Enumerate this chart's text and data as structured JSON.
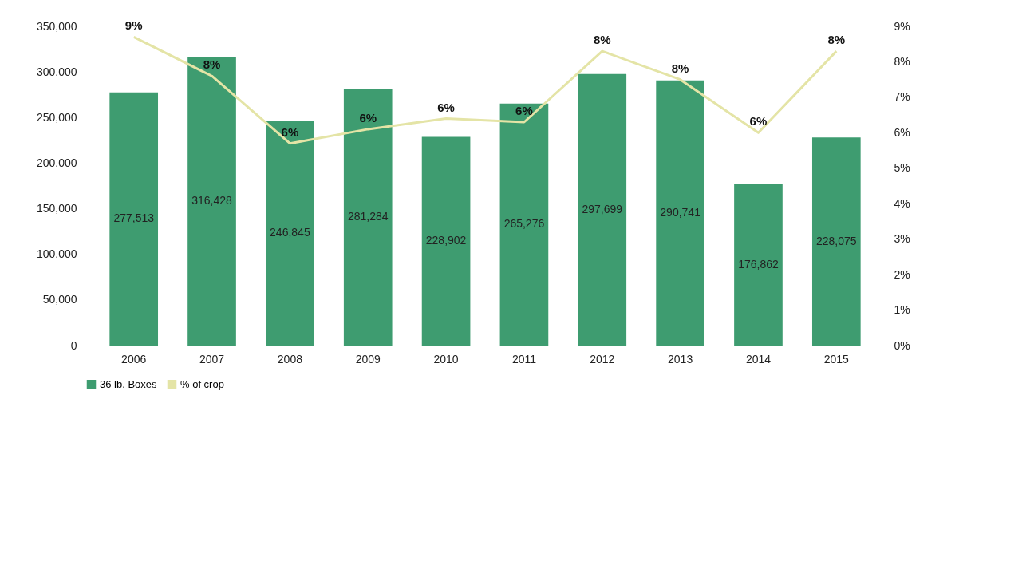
{
  "chart_data": {
    "type": "bar",
    "categories": [
      "2006",
      "2007",
      "2008",
      "2009",
      "2010",
      "2011",
      "2012",
      "2013",
      "2014",
      "2015"
    ],
    "series": [
      {
        "name": "36 lb. Boxes",
        "color": "#3e9c70",
        "values": [
          277513,
          316428,
          246845,
          281284,
          228902,
          265276,
          297699,
          290741,
          176862,
          228075
        ],
        "value_labels": [
          "277,513",
          "316,428",
          "246,845",
          "281,284",
          "228,902",
          "265,276",
          "297,699",
          "290,741",
          "176,862",
          "228,075"
        ]
      },
      {
        "name": "% of crop",
        "type": "line",
        "axis": "y2",
        "color": "#e4e4a6",
        "values": [
          8.7,
          7.6,
          5.7,
          6.1,
          6.4,
          6.3,
          8.3,
          7.5,
          6.0,
          8.3
        ],
        "value_labels": [
          "9%",
          "8%",
          "6%",
          "6%",
          "6%",
          "6%",
          "8%",
          "8%",
          "6%",
          "8%"
        ]
      }
    ],
    "ylim": [
      0,
      350000
    ],
    "yticks": [
      0,
      {
        "value": 50000,
        "label": "50,000"
      },
      {
        "value": 100000,
        "label": "100,000"
      },
      {
        "value": 150000,
        "label": "150,000"
      },
      {
        "value": 200000,
        "label": "200,000"
      },
      {
        "value": 250000,
        "label": "250,000"
      },
      {
        "value": 300000,
        "label": "300,000"
      },
      {
        "value": 350000,
        "label": "350,000"
      }
    ],
    "y2lim": [
      0,
      9
    ],
    "y2ticks": [
      {
        "value": 0,
        "label": "0%"
      },
      {
        "value": 1,
        "label": "1%"
      },
      {
        "value": 2,
        "label": "2%"
      },
      {
        "value": 3,
        "label": "3%"
      },
      {
        "value": 4,
        "label": "4%"
      },
      {
        "value": 5,
        "label": "5%"
      },
      {
        "value": 6,
        "label": "6%"
      },
      {
        "value": 7,
        "label": "7%"
      },
      {
        "value": 8,
        "label": "8%"
      },
      {
        "value": 9,
        "label": "9%"
      }
    ],
    "legend": "bottom"
  }
}
